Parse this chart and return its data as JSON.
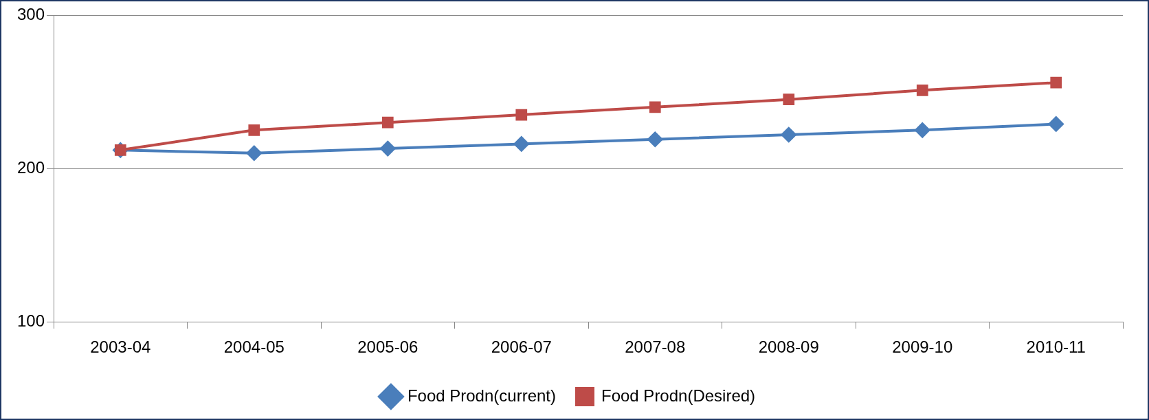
{
  "chart_data": {
    "type": "line",
    "categories": [
      "2003-04",
      "2004-05",
      "2005-06",
      "2006-07",
      "2007-08",
      "2008-09",
      "2009-10",
      "2010-11"
    ],
    "series": [
      {
        "name": "Food Prodn(current)",
        "color": "#4a7ebb",
        "marker": "diamond",
        "values": [
          212,
          210,
          213,
          216,
          219,
          222,
          225,
          229
        ]
      },
      {
        "name": "Food Prodn(Desired)",
        "color": "#be4b48",
        "marker": "square",
        "values": [
          212,
          225,
          230,
          235,
          240,
          245,
          251,
          256
        ]
      }
    ],
    "ylim": [
      100,
      300
    ],
    "yticks": [
      100,
      200,
      300
    ],
    "grid": "y",
    "legend": "bottom",
    "line_style": "solid"
  }
}
